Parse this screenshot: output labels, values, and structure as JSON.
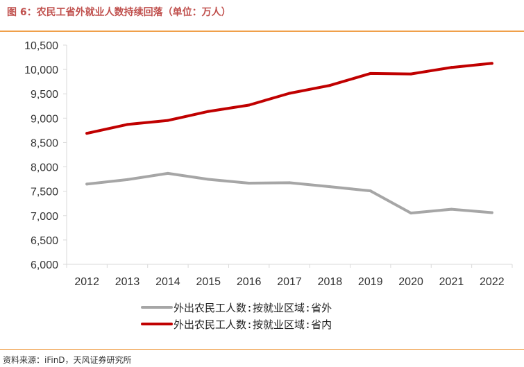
{
  "header": {
    "title": "图 6：农民工省外就业人数持续回落（单位：万人）"
  },
  "footer": {
    "source": "资料来源：iFinD，天风证券研究所"
  },
  "chart_data": {
    "type": "line",
    "x": [
      "2012",
      "2013",
      "2014",
      "2015",
      "2016",
      "2017",
      "2018",
      "2019",
      "2020",
      "2021",
      "2022"
    ],
    "ylim": [
      6000,
      10500
    ],
    "yticks": [
      "6,000",
      "6,500",
      "7,000",
      "7,500",
      "8,000",
      "8,500",
      "9,000",
      "9,500",
      "10,000",
      "10,500"
    ],
    "grid": false,
    "legend_position": "bottom",
    "series": [
      {
        "name": "外出农民工人数:按就业区域:省外",
        "color": "#a6a6a6",
        "values": [
          7647,
          7739,
          7867,
          7745,
          7666,
          7675,
          7594,
          7508,
          7052,
          7130,
          7061
        ]
      },
      {
        "name": "外出农民工人数:按就业区域:省内",
        "color": "#c00000",
        "values": [
          8689,
          8871,
          8954,
          9139,
          9268,
          9510,
          9672,
          9917,
          9907,
          10042,
          10125
        ]
      }
    ]
  }
}
